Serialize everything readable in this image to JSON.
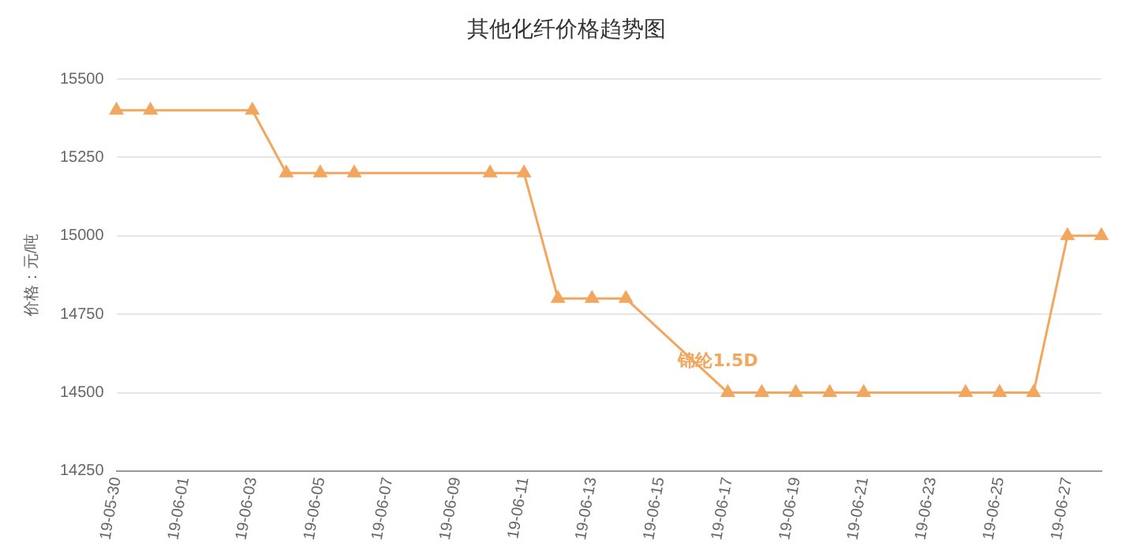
{
  "chart_data": {
    "type": "line",
    "title": "其他化纤价格趋势图",
    "ylabel": "价格：元/吨",
    "categories": [
      "19-05-30",
      null,
      "19-06-01",
      null,
      "19-06-03",
      null,
      "19-06-05",
      null,
      "19-06-07",
      null,
      "19-06-09",
      null,
      "19-06-11",
      null,
      "19-06-13",
      null,
      "19-06-15",
      null,
      "19-06-17",
      null,
      "19-06-19",
      null,
      "19-06-21",
      null,
      "19-06-23",
      null,
      "19-06-25",
      null,
      "19-06-27",
      null
    ],
    "series": [
      {
        "name": "锦纶1.5D",
        "color": "#f2a65e",
        "values": [
          15400,
          15400,
          null,
          null,
          15400,
          15200,
          15200,
          15200,
          null,
          null,
          null,
          15200,
          15200,
          14800,
          14800,
          14800,
          null,
          null,
          14500,
          14500,
          14500,
          14500,
          14500,
          null,
          null,
          14500,
          14500,
          14500,
          15000,
          15000
        ]
      }
    ],
    "ylim": [
      14250,
      15500
    ],
    "yticks": [
      14250,
      14500,
      14750,
      15000,
      15250,
      15500
    ],
    "grid": "y",
    "legend": false,
    "marker": "triangle",
    "line_style": "solid"
  }
}
